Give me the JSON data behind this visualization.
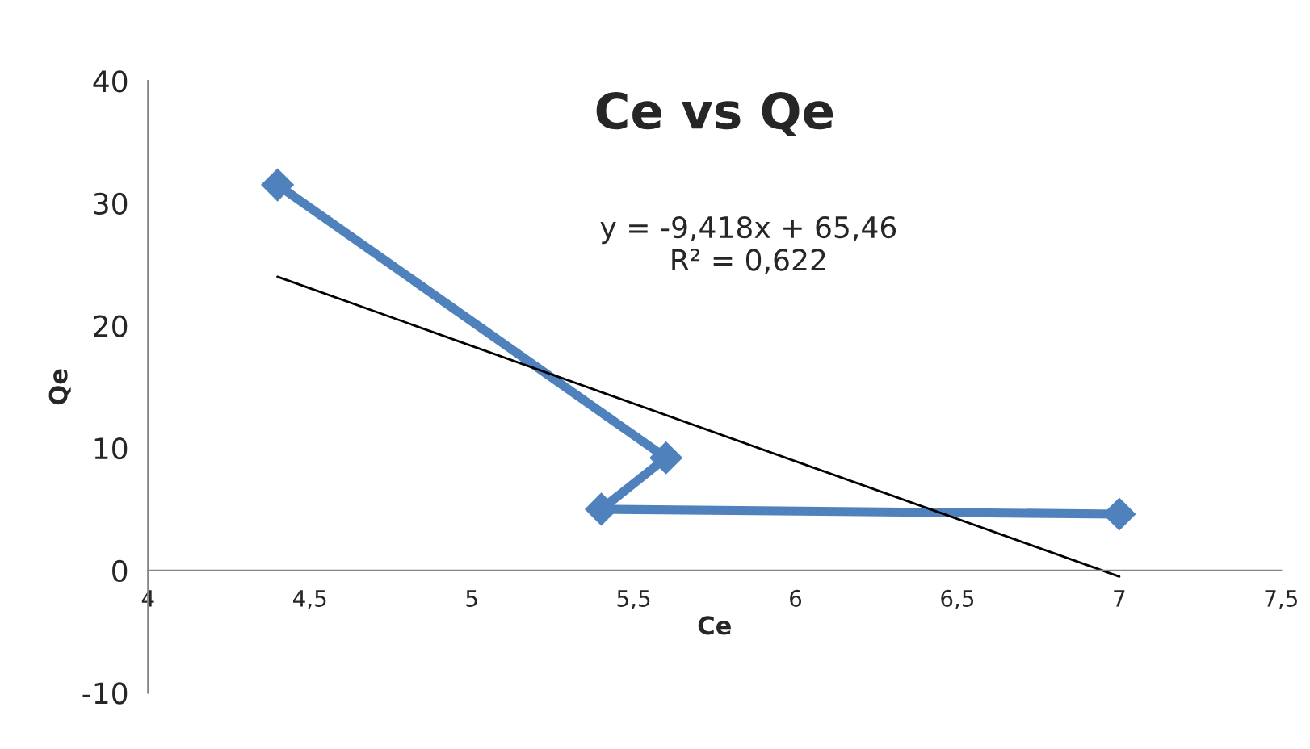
{
  "chart_data": {
    "type": "line",
    "title": "Ce vs Qe",
    "xlabel": "Ce",
    "ylabel": "Qe",
    "xlim": [
      4,
      7.5
    ],
    "ylim": [
      -10,
      40
    ],
    "xticks": [
      4,
      {
        "value": 4.5,
        "label": "4,5"
      },
      5,
      {
        "value": 5.5,
        "label": "5,5"
      },
      6,
      {
        "value": 6.5,
        "label": "6,5"
      },
      7,
      {
        "value": 7.5,
        "label": "7,5"
      }
    ],
    "yticks": [
      -10,
      0,
      10,
      20,
      30,
      40
    ],
    "grid": false,
    "legend": false,
    "marker": "diamond",
    "series": [
      {
        "color": "#4f81bd",
        "x": [
          4.4,
          5.6,
          5.4,
          7.0
        ],
        "values": [
          31.5,
          9.2,
          5.0,
          4.6
        ]
      },
      {
        "type": "line",
        "color": "#000000",
        "x": [
          4.4,
          7.0
        ],
        "values": [
          24,
          -0.5
        ],
        "marker": "none"
      }
    ],
    "annotations": [
      "y = -9,418x + 65,46\nR² = 0,622"
    ]
  }
}
